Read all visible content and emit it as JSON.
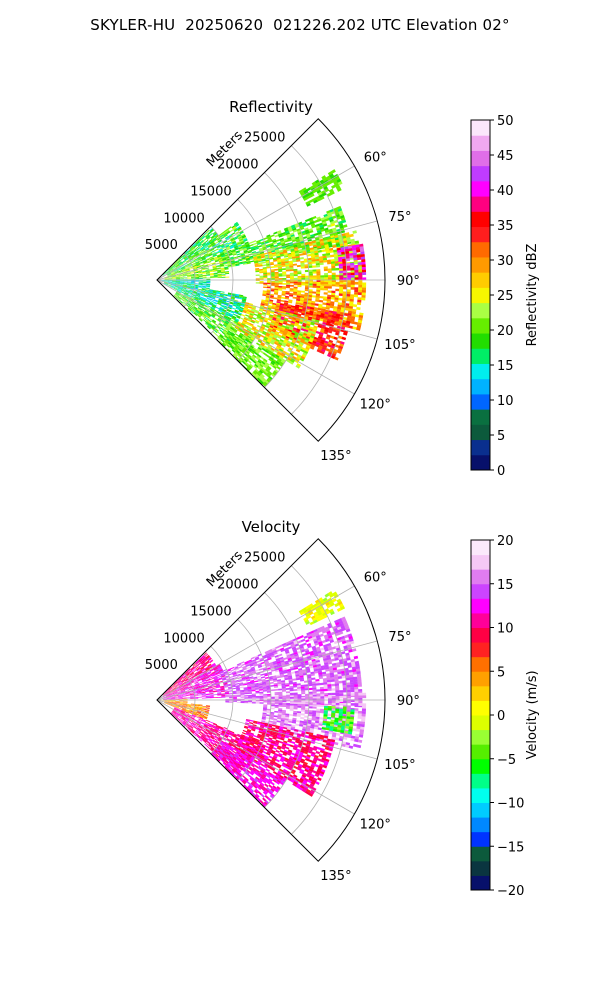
{
  "figure_title": "SKYLER-HU  20250620  021226.202 UTC Elevation 02°",
  "colors": {
    "reflectivity_cmap": [
      "#07106a",
      "#0a2f8e",
      "#0c5a3c",
      "#0a7040",
      "#0066ff",
      "#00b2ff",
      "#00eeee",
      "#00ee66",
      "#22dd00",
      "#66ee00",
      "#aaff44",
      "#f7f700",
      "#ffcc00",
      "#ff9a00",
      "#ff6a00",
      "#ff1e1e",
      "#ff0000",
      "#ff0080",
      "#ff00ff",
      "#c03cff",
      "#e06ee8",
      "#f0a8f0",
      "#fbe6fb"
    ],
    "velocity_cmap": [
      "#07106a",
      "#0a3540",
      "#0c5a3c",
      "#0033ff",
      "#0088ff",
      "#00ccff",
      "#00ffee",
      "#00ff88",
      "#00ff00",
      "#55ee00",
      "#99ff33",
      "#ddff00",
      "#ffff00",
      "#ffd000",
      "#ffa000",
      "#ff7000",
      "#ff2222",
      "#ff0044",
      "#ff0099",
      "#ff00ff",
      "#cc44ff",
      "#e07cf0",
      "#f5c8f5",
      "#fbe9fb"
    ],
    "grid": "#b0b0b0"
  },
  "chart_data": [
    {
      "type": "heatmap",
      "projection": "polar-sector",
      "title": "Reflectivity",
      "radial_label": "Meters",
      "radial_ticks": [
        "5000",
        "10000",
        "15000",
        "20000",
        "25000"
      ],
      "radial_tick_values": [
        5000,
        10000,
        15000,
        20000,
        25000
      ],
      "rlim": [
        0,
        30000
      ],
      "theta_ticks": [
        "60°",
        "75°",
        "90°",
        "105°",
        "120°",
        "135°"
      ],
      "theta_tick_values": [
        60,
        75,
        90,
        105,
        120,
        135
      ],
      "theta_range_deg": [
        45,
        135
      ],
      "theta_convention": "compass bearing, 0° = north, clockwise",
      "grid": true,
      "colorbar": {
        "label": "Reflectivity dBZ",
        "range": [
          0,
          50
        ],
        "ticks": [
          "0",
          "5",
          "10",
          "15",
          "20",
          "25",
          "30",
          "35",
          "40",
          "45",
          "50"
        ],
        "tick_values": [
          0,
          5,
          10,
          15,
          20,
          25,
          30,
          35,
          40,
          45,
          50
        ]
      },
      "echo_cells": [
        {
          "az": [
            46,
            56
          ],
          "r": [
            1000,
            10000
          ],
          "v": [
            14,
            22
          ]
        },
        {
          "az": [
            54,
            70
          ],
          "r": [
            1500,
            13000
          ],
          "v": [
            14,
            24
          ]
        },
        {
          "az": [
            68,
            88
          ],
          "r": [
            1000,
            9500
          ],
          "v": [
            17,
            26
          ]
        },
        {
          "az": [
            88,
            100
          ],
          "r": [
            500,
            7000
          ],
          "v": [
            12,
            18
          ]
        },
        {
          "az": [
            100,
            118
          ],
          "r": [
            1000,
            12000
          ],
          "v": [
            12,
            20
          ]
        },
        {
          "az": [
            118,
            133
          ],
          "r": [
            3000,
            15000
          ],
          "v": [
            16,
            24
          ]
        },
        {
          "az": [
            68,
            80
          ],
          "r": [
            9000,
            26000
          ],
          "v": [
            16,
            24
          ]
        },
        {
          "az": [
            76,
            92
          ],
          "r": [
            13000,
            27000
          ],
          "v": [
            20,
            30
          ]
        },
        {
          "az": [
            80,
            90
          ],
          "r": [
            24000,
            27500
          ],
          "v": [
            35,
            45
          ]
        },
        {
          "az": [
            90,
            104
          ],
          "r": [
            14000,
            27500
          ],
          "v": [
            24,
            34
          ]
        },
        {
          "az": [
            100,
            114
          ],
          "r": [
            16000,
            26000
          ],
          "v": [
            30,
            38
          ]
        },
        {
          "az": [
            104,
            122
          ],
          "r": [
            12000,
            22000
          ],
          "v": [
            20,
            30
          ]
        },
        {
          "az": [
            122,
            136
          ],
          "r": [
            11000,
            20000
          ],
          "v": [
            18,
            24
          ]
        },
        {
          "az": [
            58,
            64
          ],
          "r": [
            22000,
            27500
          ],
          "v": [
            18,
            22
          ]
        }
      ]
    },
    {
      "type": "heatmap",
      "projection": "polar-sector",
      "title": "Velocity",
      "radial_label": "Meters",
      "radial_ticks": [
        "5000",
        "10000",
        "15000",
        "20000",
        "25000"
      ],
      "radial_tick_values": [
        5000,
        10000,
        15000,
        20000,
        25000
      ],
      "rlim": [
        0,
        30000
      ],
      "theta_ticks": [
        "60°",
        "75°",
        "90°",
        "105°",
        "120°",
        "135°"
      ],
      "theta_tick_values": [
        60,
        75,
        90,
        105,
        120,
        135
      ],
      "theta_range_deg": [
        45,
        135
      ],
      "theta_convention": "compass bearing, 0° = north, clockwise",
      "grid": true,
      "colorbar": {
        "label": "Velocity (m/s)",
        "range": [
          -20,
          20
        ],
        "ticks": [
          "−20",
          "−15",
          "−10",
          "−5",
          "0",
          "5",
          "10",
          "15",
          "20"
        ],
        "tick_values": [
          -20,
          -15,
          -10,
          -5,
          0,
          5,
          10,
          15,
          20
        ]
      },
      "echo_cells": [
        {
          "az": [
            46,
            60
          ],
          "r": [
            1000,
            9000
          ],
          "v": [
            8,
            13
          ]
        },
        {
          "az": [
            60,
            88
          ],
          "r": [
            800,
            9500
          ],
          "v": [
            10,
            15
          ]
        },
        {
          "az": [
            88,
            96
          ],
          "r": [
            300,
            4000
          ],
          "v": [
            0,
            6
          ]
        },
        {
          "az": [
            96,
            112
          ],
          "r": [
            1000,
            7000
          ],
          "v": [
            2,
            8
          ]
        },
        {
          "az": [
            112,
            133
          ],
          "r": [
            2500,
            15000
          ],
          "v": [
            9,
            13
          ]
        },
        {
          "az": [
            66,
            92
          ],
          "r": [
            9000,
            27000
          ],
          "v": [
            13,
            17
          ]
        },
        {
          "az": [
            88,
            104
          ],
          "r": [
            14000,
            27500
          ],
          "v": [
            14,
            18
          ]
        },
        {
          "az": [
            92,
            100
          ],
          "r": [
            22000,
            26000
          ],
          "v": [
            -8,
            -2
          ]
        },
        {
          "az": [
            102,
            122
          ],
          "r": [
            12000,
            24000
          ],
          "v": [
            8,
            13
          ]
        },
        {
          "az": [
            122,
            136
          ],
          "r": [
            10000,
            20000
          ],
          "v": [
            10,
            14
          ]
        },
        {
          "az": [
            58,
            64
          ],
          "r": [
            22000,
            27500
          ],
          "v": [
            -2,
            2
          ]
        }
      ]
    }
  ]
}
